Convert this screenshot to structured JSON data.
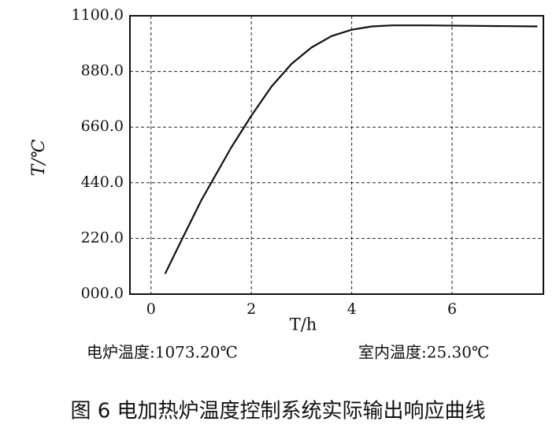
{
  "chart_data": {
    "type": "line",
    "xlabel": "T/h",
    "ylabel": "T/℃",
    "x": [
      0.28,
      0.6,
      1.0,
      1.2,
      1.6,
      2.0,
      2.4,
      2.8,
      3.2,
      3.6,
      4.0,
      4.4,
      4.8,
      5.5,
      6.5,
      7.7
    ],
    "series": [
      {
        "color": "#111111",
        "values": [
          80,
          210,
          370,
          440,
          580,
          705,
          820,
          910,
          975,
          1020,
          1045,
          1058,
          1062,
          1062,
          1060,
          1058
        ]
      }
    ],
    "xlim": [
      -0.42,
      7.82
    ],
    "xticks": [
      0,
      2,
      4,
      6
    ],
    "ylim": [
      0,
      1100
    ],
    "yticks": [
      {
        "value": 0,
        "label": "000.0"
      },
      {
        "value": 220,
        "label": "220.0"
      },
      {
        "value": 440,
        "label": "440.0"
      },
      {
        "value": 660,
        "label": "660.0"
      },
      {
        "value": 880,
        "label": "880.0"
      },
      {
        "value": 1100,
        "label": "1100.0"
      }
    ],
    "grid": true,
    "annotations": [
      "电炉温度:1073.20℃",
      "室内温度:25.30℃"
    ],
    "caption": "图 6   电加热炉温度控制系统实际输出响应曲线"
  }
}
